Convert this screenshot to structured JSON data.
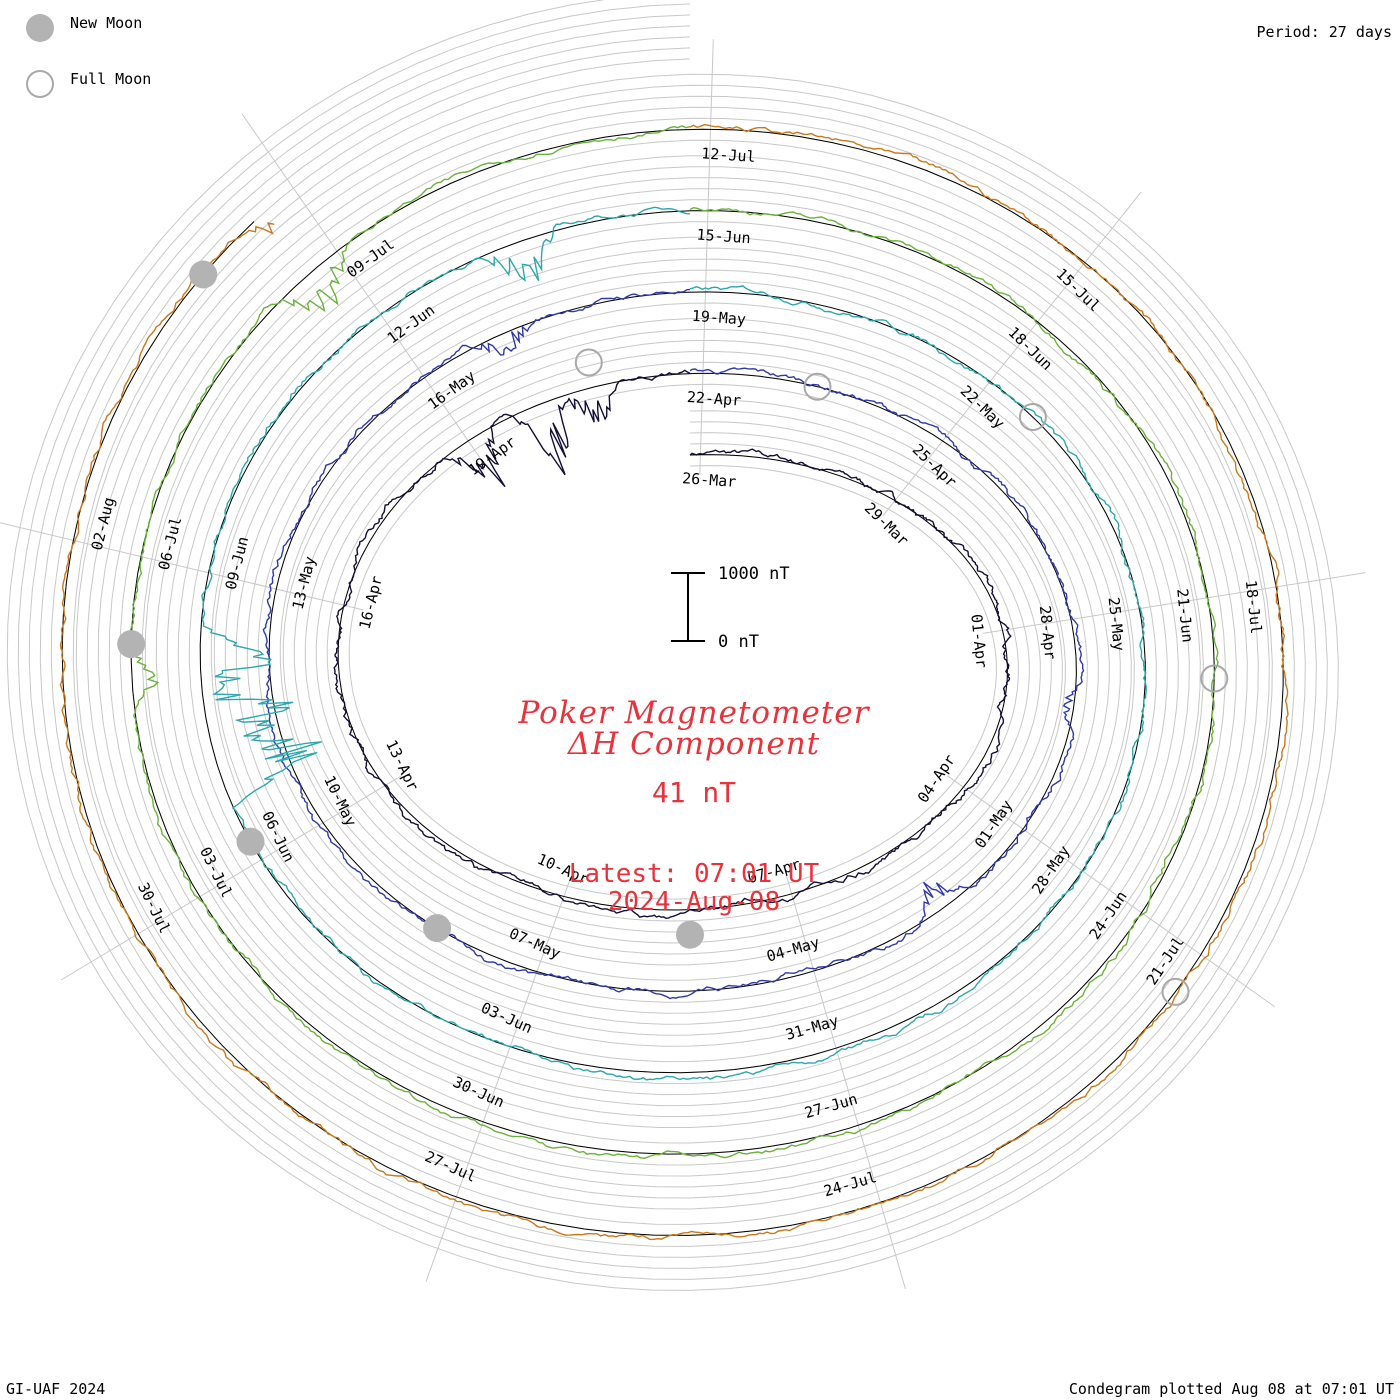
{
  "header": {
    "period": "Period: 27 days"
  },
  "legend": {
    "new_moon": "New Moon",
    "full_moon": "Full Moon",
    "new_moon_color": "#b3b3b3",
    "full_moon_color": "#a8a8a8"
  },
  "title": {
    "line1": "Poker Magnetometer",
    "line2": "ΔH Component",
    "value": "41 nT",
    "latest": "Latest: 07:01 UT",
    "date": "2024-Aug-08",
    "color": "#e8323c"
  },
  "footer": {
    "left": "GI-UAF 2024",
    "right": "Condegram plotted Aug 08 at 07:01 UT"
  },
  "chart_data": {
    "type": "line",
    "title": "Poker Magnetometer ΔH Component",
    "projection": "condegram-spiral",
    "period_days": 27,
    "start_date": "2024-03-25",
    "end_date": "2024-08-08",
    "scale_bar": {
      "top_label": "1000 nT",
      "bottom_label": "0 nT",
      "top_value": 1000,
      "bottom_value": 0
    },
    "current_value_nT": 41,
    "rotations": [
      {
        "index": 0,
        "start": "2024-03-25",
        "color": "#150c3a"
      },
      {
        "index": 1,
        "start": "2024-04-21",
        "color": "#2f39a8"
      },
      {
        "index": 2,
        "start": "2024-05-18",
        "color": "#2aa8ae"
      },
      {
        "index": 3,
        "start": "2024-06-14",
        "color": "#6ab23a"
      },
      {
        "index": 4,
        "start": "2024-07-11",
        "color": "#c9781a"
      }
    ],
    "date_labels": [
      {
        "rotation": 0,
        "label": "26-Mar",
        "angle": 4
      },
      {
        "rotation": 0,
        "label": "29-Mar",
        "angle": 44
      },
      {
        "rotation": 0,
        "label": "01-Apr",
        "angle": 84
      },
      {
        "rotation": 0,
        "label": "04-Apr",
        "angle": 124
      },
      {
        "rotation": 0,
        "label": "07-Apr",
        "angle": 164
      },
      {
        "rotation": 0,
        "label": "10-Apr",
        "angle": 204
      },
      {
        "rotation": 0,
        "label": "13-Apr",
        "angle": 244
      },
      {
        "rotation": 0,
        "label": "16-Apr",
        "angle": 284
      },
      {
        "rotation": 0,
        "label": "19-Apr",
        "angle": 324
      },
      {
        "rotation": 1,
        "label": "22-Apr",
        "angle": 4
      },
      {
        "rotation": 1,
        "label": "25-Apr",
        "angle": 44
      },
      {
        "rotation": 1,
        "label": "28-Apr",
        "angle": 84
      },
      {
        "rotation": 1,
        "label": "01-May",
        "angle": 124
      },
      {
        "rotation": 1,
        "label": "04-May",
        "angle": 164
      },
      {
        "rotation": 1,
        "label": "07-May",
        "angle": 204
      },
      {
        "rotation": 1,
        "label": "10-May",
        "angle": 244
      },
      {
        "rotation": 1,
        "label": "13-May",
        "angle": 284
      },
      {
        "rotation": 1,
        "label": "16-May",
        "angle": 324
      },
      {
        "rotation": 2,
        "label": "19-May",
        "angle": 4
      },
      {
        "rotation": 2,
        "label": "22-May",
        "angle": 44
      },
      {
        "rotation": 2,
        "label": "25-May",
        "angle": 84
      },
      {
        "rotation": 2,
        "label": "28-May",
        "angle": 124
      },
      {
        "rotation": 2,
        "label": "31-May",
        "angle": 164
      },
      {
        "rotation": 2,
        "label": "03-Jun",
        "angle": 204
      },
      {
        "rotation": 2,
        "label": "06-Jun",
        "angle": 244
      },
      {
        "rotation": 2,
        "label": "09-Jun",
        "angle": 284
      },
      {
        "rotation": 2,
        "label": "12-Jun",
        "angle": 324
      },
      {
        "rotation": 3,
        "label": "15-Jun",
        "angle": 4
      },
      {
        "rotation": 3,
        "label": "18-Jun",
        "angle": 44
      },
      {
        "rotation": 3,
        "label": "21-Jun",
        "angle": 84
      },
      {
        "rotation": 3,
        "label": "24-Jun",
        "angle": 124
      },
      {
        "rotation": 3,
        "label": "27-Jun",
        "angle": 164
      },
      {
        "rotation": 3,
        "label": "30-Jun",
        "angle": 204
      },
      {
        "rotation": 3,
        "label": "03-Jul",
        "angle": 244
      },
      {
        "rotation": 3,
        "label": "06-Jul",
        "angle": 284
      },
      {
        "rotation": 3,
        "label": "09-Jul",
        "angle": 324
      },
      {
        "rotation": 4,
        "label": "12-Jul",
        "angle": 4
      },
      {
        "rotation": 4,
        "label": "15-Jul",
        "angle": 44
      },
      {
        "rotation": 4,
        "label": "18-Jul",
        "angle": 84
      },
      {
        "rotation": 4,
        "label": "21-Jul",
        "angle": 124
      },
      {
        "rotation": 4,
        "label": "24-Jul",
        "angle": 164
      },
      {
        "rotation": 4,
        "label": "27-Jul",
        "angle": 204
      },
      {
        "rotation": 4,
        "label": "30-Jul",
        "angle": 244
      },
      {
        "rotation": 4,
        "label": "02-Aug",
        "angle": 284
      }
    ],
    "moon_phases": [
      {
        "phase": "full",
        "rotation": 0,
        "angle": 345
      },
      {
        "phase": "new",
        "rotation": 0,
        "angle": 180
      },
      {
        "phase": "full",
        "rotation": 1,
        "angle": 20
      },
      {
        "phase": "new",
        "rotation": 1,
        "angle": 218
      },
      {
        "phase": "full",
        "rotation": 2,
        "angle": 50
      },
      {
        "phase": "new",
        "rotation": 2,
        "angle": 245
      },
      {
        "phase": "full",
        "rotation": 3,
        "angle": 92
      },
      {
        "phase": "new",
        "rotation": 3,
        "angle": 272
      },
      {
        "phase": "full",
        "rotation": 4,
        "angle": 126
      },
      {
        "phase": "new",
        "rotation": 4,
        "angle": 310
      }
    ],
    "disturbances": [
      {
        "rotation": 0,
        "angle": 322,
        "peak_nT": 900
      },
      {
        "rotation": 0,
        "angle": 335,
        "peak_nT": 1400
      },
      {
        "rotation": 0,
        "angle": 344,
        "peak_nT": 700
      },
      {
        "rotation": 1,
        "angle": 334,
        "peak_nT": 500
      },
      {
        "rotation": 1,
        "angle": 140,
        "peak_nT": 500
      },
      {
        "rotation": 1,
        "angle": 98,
        "peak_nT": 300
      },
      {
        "rotation": 2,
        "angle": 255,
        "peak_nT": 2100
      },
      {
        "rotation": 2,
        "angle": 262,
        "peak_nT": 1900
      },
      {
        "rotation": 2,
        "angle": 270,
        "peak_nT": 1300
      },
      {
        "rotation": 2,
        "angle": 340,
        "peak_nT": 800
      },
      {
        "rotation": 3,
        "angle": 318,
        "peak_nT": 900
      },
      {
        "rotation": 3,
        "angle": 268,
        "peak_nT": 500
      },
      {
        "rotation": 4,
        "angle": 320,
        "peak_nT": 800
      }
    ]
  }
}
